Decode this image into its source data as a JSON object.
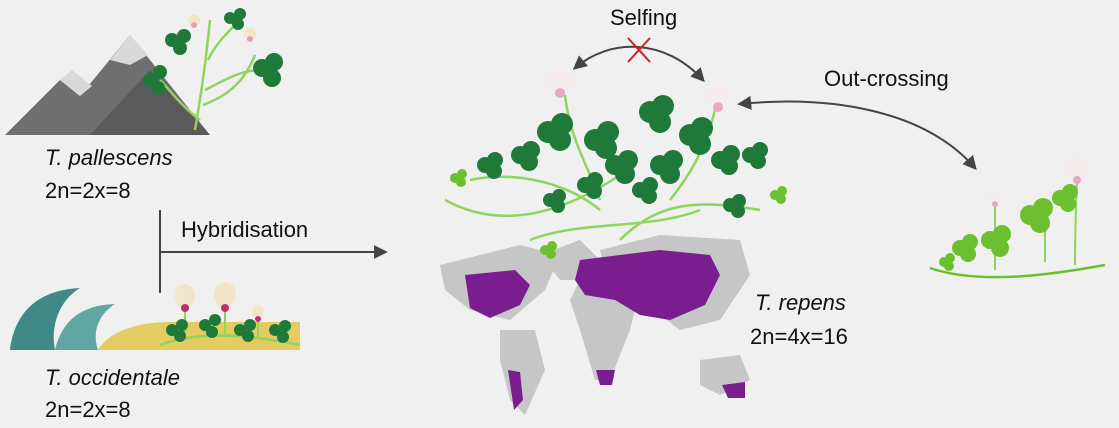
{
  "labels": {
    "pallescens_name": "T. pallescens",
    "pallescens_ploidy": "2n=2x=8",
    "occidentale_name": "T. occidentale",
    "occidentale_ploidy": "2n=2x=8",
    "hybridisation": "Hybridisation",
    "repens_name": "T. repens",
    "repens_ploidy": "2n=4x=16",
    "selfing": "Selfing",
    "outcrossing": "Out-crossing"
  },
  "colors": {
    "background": "#f0f0f0",
    "mountain": "#6f6f6f",
    "snow": "#d9d9d9",
    "wave": "#3f8a86",
    "sand": "#e2c64a",
    "leaf_dark": "#1f7a3a",
    "leaf_light": "#6cbf2e",
    "stem": "#8ed45f",
    "flower": "#f2e6c8",
    "flower_base": "#e0a0b8",
    "land": "#c6c6c6",
    "distribution": "#7a1d8f",
    "arrow": "#444444",
    "cross": "#cc2222"
  }
}
